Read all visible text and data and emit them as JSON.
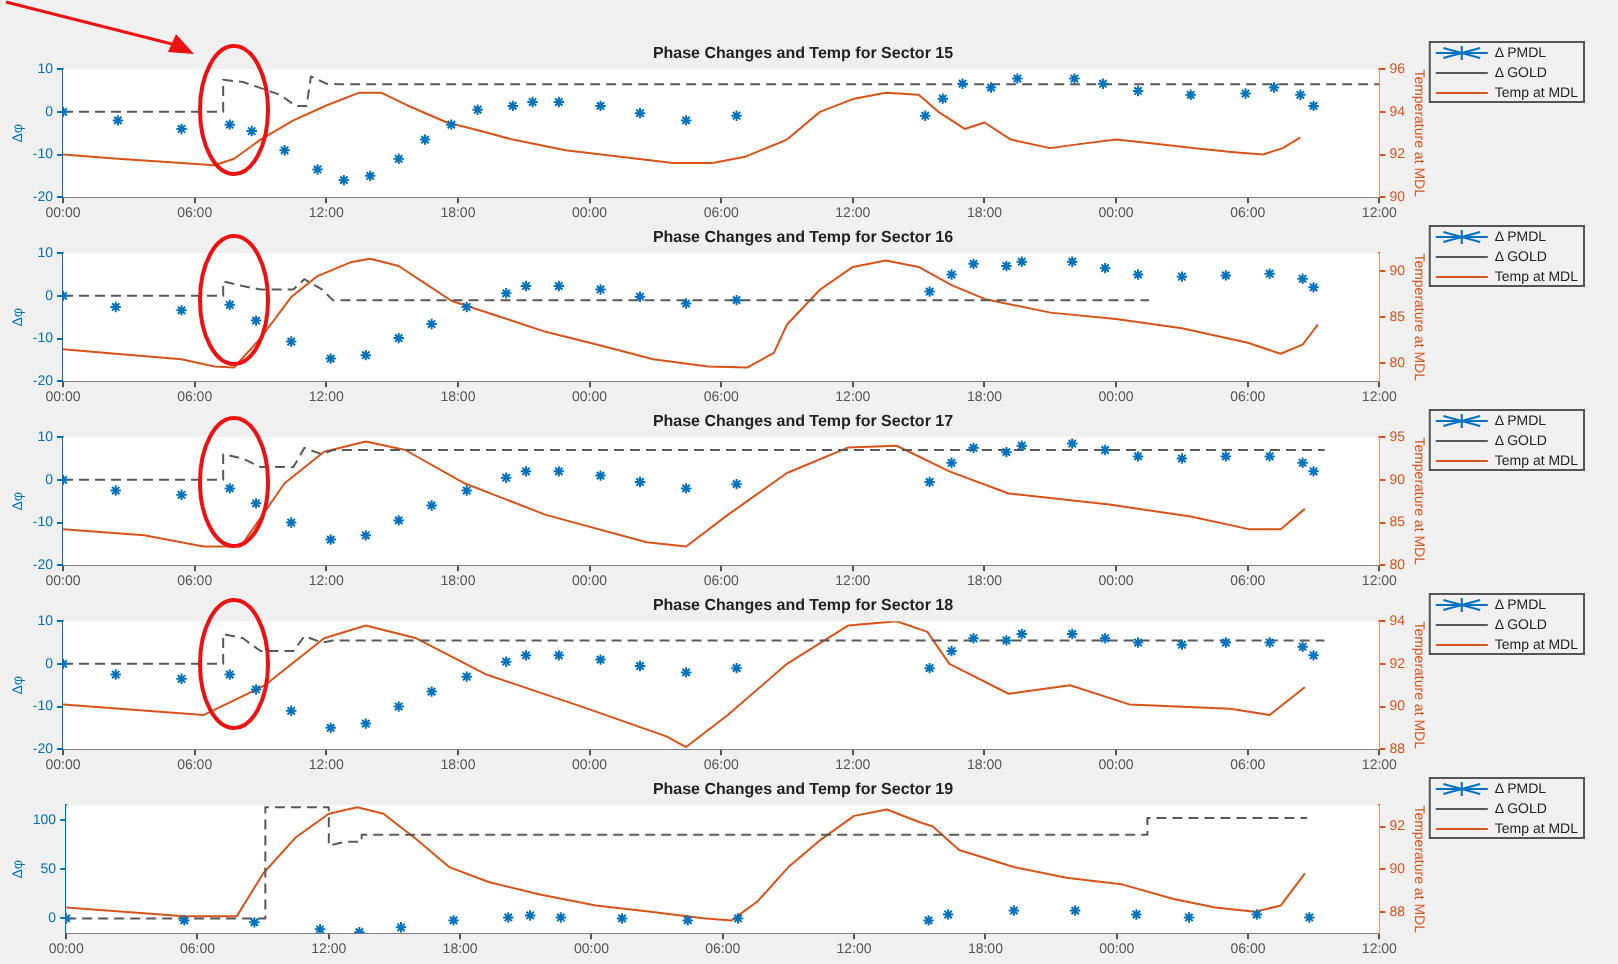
{
  "chart_data": [
    {
      "type": "line",
      "title": "Phase Changes and Temp for Sector 15",
      "ylabel": "Δφ",
      "y2label": "Temperature at MDL",
      "xlim": [
        "--01-01T00:00",
        "--01-03T12:00"
      ],
      "xticks": [
        {
          "value": "--01-01T00:00",
          "label": "00:00"
        },
        {
          "value": "--01-01T06:00",
          "label": "06:00"
        },
        {
          "value": "--01-01T12:00",
          "label": "12:00"
        },
        {
          "value": "--01-01T18:00",
          "label": "18:00"
        },
        {
          "value": "--01-02T00:00",
          "label": "00:00"
        },
        {
          "value": "--01-02T06:00",
          "label": "06:00"
        },
        {
          "value": "--01-02T12:00",
          "label": "12:00"
        },
        {
          "value": "--01-02T18:00",
          "label": "18:00"
        },
        {
          "value": "--01-03T00:00",
          "label": "00:00"
        },
        {
          "value": "--01-03T06:00",
          "label": "06:00"
        },
        {
          "value": "--01-03T12:00",
          "label": "12:00"
        }
      ],
      "ylim": [
        -20,
        10
      ],
      "yticks": [
        -20,
        -10,
        0,
        10
      ],
      "y2lim": [
        90,
        96
      ],
      "y2ticks": [
        90,
        92,
        94,
        96
      ],
      "grid": false,
      "legend": "right",
      "series": [
        {
          "name": "Δ PMDL",
          "type": "scatter",
          "marker": "cross",
          "color": "#0072bd",
          "x": [
            "--01-01T00:00",
            "--01-01T02:30",
            "--01-01T05:24",
            "--01-01T07:36",
            "--01-01T08:36",
            "--01-01T10:06",
            "--01-01T11:36",
            "--01-01T12:48",
            "--01-01T14:00",
            "--01-01T15:18",
            "--01-01T16:30",
            "--01-01T17:42",
            "--01-01T18:54",
            "--01-01T20:30",
            "--01-01T21:24",
            "--01-01T22:36",
            "--01-02T00:30",
            "--01-02T02:18",
            "--01-02T04:24",
            "--01-02T06:42",
            "--01-02T15:18",
            "--01-02T16:06",
            "--01-02T17:00",
            "--01-02T18:18",
            "--01-02T19:30",
            "--01-02T22:06",
            "--01-02T23:24",
            "--01-03T01:00",
            "--01-03T03:24",
            "--01-03T05:54",
            "--01-03T07:12",
            "--01-03T08:24",
            "--01-03T09:00"
          ],
          "values": [
            0,
            -2,
            -4,
            -3,
            -4.5,
            -9,
            -13.5,
            -16,
            -15,
            -11,
            -6.5,
            -3,
            0.5,
            1.4,
            2.3,
            2.3,
            1.4,
            -0.3,
            -2,
            -0.9,
            -0.9,
            3.1,
            6.6,
            5.7,
            7.8,
            7.8,
            6.6,
            4.9,
            4,
            4.3,
            5.7,
            4,
            1.4
          ]
        },
        {
          "name": "Δ GOLD",
          "type": "line",
          "line_style": "dashed",
          "color": "#595959",
          "x": [
            "--01-01T00:00",
            "--01-01T07:18",
            "--01-01T07:18",
            "--01-01T08:12",
            "--01-01T09:54",
            "--01-01T10:36",
            "--01-01T11:06",
            "--01-01T11:18",
            "--01-01T12:00",
            "--01-01T12:36",
            "--01-03T12:00"
          ],
          "values": [
            0,
            0,
            7.5,
            7,
            4,
            1.4,
            1.4,
            8.3,
            6.6,
            6.5,
            6.5
          ]
        },
        {
          "name": "Temp at MDL",
          "type": "line",
          "line_style": "solid",
          "axis": "y2",
          "color": "#d95319",
          "x": [
            "--01-01T00:00",
            "--01-01T02:30",
            "--01-01T05:24",
            "--01-01T06:54",
            "--01-01T07:48",
            "--01-01T09:00",
            "--01-01T10:30",
            "--01-01T12:00",
            "--01-01T13:30",
            "--01-01T14:30",
            "--01-01T15:42",
            "--01-01T17:30",
            "--01-01T18:42",
            "--01-01T20:30",
            "--01-01T22:54",
            "--01-02T01:24",
            "--01-02T03:48",
            "--01-02T05:36",
            "--01-02T07:06",
            "--01-02T09:00",
            "--01-02T10:30",
            "--01-02T12:00",
            "--01-02T13:30",
            "--01-02T15:00",
            "--01-02T15:54",
            "--01-02T17:06",
            "--01-02T18:00",
            "--01-02T19:12",
            "--01-02T21:00",
            "--01-02T22:24",
            "--01-03T00:00",
            "--01-03T01:48",
            "--01-03T03:36",
            "--01-03T05:30",
            "--01-03T06:42",
            "--01-03T07:36",
            "--01-03T08:24"
          ],
          "values": [
            92,
            91.8,
            91.6,
            91.5,
            91.8,
            92.7,
            93.6,
            94.3,
            94.9,
            94.9,
            94.3,
            93.5,
            93.2,
            92.7,
            92.2,
            91.9,
            91.6,
            91.6,
            91.9,
            92.7,
            94,
            94.6,
            94.9,
            94.8,
            94,
            93.2,
            93.5,
            92.7,
            92.3,
            92.5,
            92.7,
            92.5,
            92.3,
            92.1,
            92,
            92.3,
            92.8
          ]
        }
      ]
    },
    {
      "type": "line",
      "title": "Phase Changes and Temp for Sector 16",
      "ylabel": "Δφ",
      "y2label": "Temperature at MDL",
      "xlim": [
        "--01-01T00:00",
        "--01-03T12:00"
      ],
      "xticks": [
        {
          "value": "--01-01T00:00",
          "label": "00:00"
        },
        {
          "value": "--01-01T06:00",
          "label": "06:00"
        },
        {
          "value": "--01-01T12:00",
          "label": "12:00"
        },
        {
          "value": "--01-01T18:00",
          "label": "18:00"
        },
        {
          "value": "--01-02T00:00",
          "label": "00:00"
        },
        {
          "value": "--01-02T06:00",
          "label": "06:00"
        },
        {
          "value": "--01-02T12:00",
          "label": "12:00"
        },
        {
          "value": "--01-02T18:00",
          "label": "18:00"
        },
        {
          "value": "--01-03T00:00",
          "label": "00:00"
        },
        {
          "value": "--01-03T06:00",
          "label": "06:00"
        },
        {
          "value": "--01-03T12:00",
          "label": "12:00"
        }
      ],
      "ylim": [
        -20,
        10
      ],
      "yticks": [
        -20,
        -10,
        0,
        10
      ],
      "y2lim": [
        78,
        92
      ],
      "y2ticks": [
        80,
        85,
        90
      ],
      "grid": false,
      "legend": "right",
      "series": [
        {
          "name": "Δ PMDL",
          "type": "scatter",
          "marker": "cross",
          "color": "#0072bd",
          "x": [
            "--01-01T00:00",
            "--01-01T02:24",
            "--01-01T05:24",
            "--01-01T07:36",
            "--01-01T08:48",
            "--01-01T10:24",
            "--01-01T12:12",
            "--01-01T13:48",
            "--01-01T15:18",
            "--01-01T16:48",
            "--01-01T18:24",
            "--01-01T20:12",
            "--01-01T21:06",
            "--01-01T22:36",
            "--01-02T00:30",
            "--01-02T02:18",
            "--01-02T04:24",
            "--01-02T06:42",
            "--01-02T15:30",
            "--01-02T16:30",
            "--01-02T17:30",
            "--01-02T19:00",
            "--01-02T19:42",
            "--01-02T22:00",
            "--01-02T23:30",
            "--01-03T01:00",
            "--01-03T03:00",
            "--01-03T05:00",
            "--01-03T07:00",
            "--01-03T08:30",
            "--01-03T09:00"
          ],
          "values": [
            0,
            -2.6,
            -3.4,
            -2.1,
            -5.8,
            -10.7,
            -14.7,
            -13.9,
            -9.9,
            -6.6,
            -2.6,
            0.6,
            2.3,
            2.3,
            1.5,
            -0.2,
            -1.8,
            -1,
            1,
            5,
            7.5,
            7,
            8,
            8,
            6.5,
            5,
            4.5,
            4.8,
            5.2,
            4,
            2
          ]
        },
        {
          "name": "Δ GOLD",
          "type": "line",
          "line_style": "dashed",
          "color": "#595959",
          "x": [
            "--01-01T00:00",
            "--01-01T07:18",
            "--01-01T07:18",
            "--01-01T08:12",
            "--01-01T09:00",
            "--01-01T10:30",
            "--01-01T11:00",
            "--01-01T11:48",
            "--01-01T12:18",
            "--01-03T01:30"
          ],
          "values": [
            0,
            0,
            3.4,
            2.3,
            1.5,
            1.5,
            3.9,
            1.5,
            -1,
            -1
          ]
        },
        {
          "name": "Temp at MDL",
          "type": "line",
          "line_style": "solid",
          "axis": "y2",
          "color": "#d95319",
          "x": [
            "--01-01T00:00",
            "--01-01T02:24",
            "--01-01T05:24",
            "--01-01T06:54",
            "--01-01T07:48",
            "--01-01T09:00",
            "--01-01T10:24",
            "--01-01T11:36",
            "--01-01T13:06",
            "--01-01T14:00",
            "--01-01T15:18",
            "--01-01T16:30",
            "--01-01T17:42",
            "--01-01T19:36",
            "--01-01T22:00",
            "--01-02T00:30",
            "--01-02T02:54",
            "--01-02T05:24",
            "--01-02T07:12",
            "--01-02T08:24",
            "--01-02T09:00",
            "--01-02T10:30",
            "--01-02T12:00",
            "--01-02T13:30",
            "--01-02T15:00",
            "--01-02T16:30",
            "--01-02T18:00",
            "--01-02T21:00",
            "--01-03T00:00",
            "--01-03T03:00",
            "--01-03T06:00",
            "--01-03T07:30",
            "--01-03T08:30",
            "--01-03T09:12"
          ],
          "values": [
            81.5,
            81,
            80.4,
            79.6,
            79.5,
            82.7,
            87.2,
            89.5,
            91,
            91.4,
            90.6,
            88.7,
            86.8,
            85.3,
            83.4,
            81.9,
            80.4,
            79.6,
            79.5,
            81.1,
            84.2,
            88,
            90.5,
            91.2,
            90.5,
            88.5,
            87,
            85.5,
            84.8,
            83.8,
            82.2,
            81,
            82,
            84.2
          ]
        }
      ]
    },
    {
      "type": "line",
      "title": "Phase Changes and Temp for Sector 17",
      "ylabel": "Δφ",
      "y2label": "Temperature at MDL",
      "xlim": [
        "--01-01T00:00",
        "--01-03T12:00"
      ],
      "xticks": [
        {
          "value": "--01-01T00:00",
          "label": "00:00"
        },
        {
          "value": "--01-01T06:00",
          "label": "06:00"
        },
        {
          "value": "--01-01T12:00",
          "label": "12:00"
        },
        {
          "value": "--01-01T18:00",
          "label": "18:00"
        },
        {
          "value": "--01-02T00:00",
          "label": "00:00"
        },
        {
          "value": "--01-02T06:00",
          "label": "06:00"
        },
        {
          "value": "--01-02T12:00",
          "label": "12:00"
        },
        {
          "value": "--01-02T18:00",
          "label": "18:00"
        },
        {
          "value": "--01-03T00:00",
          "label": "00:00"
        },
        {
          "value": "--01-03T06:00",
          "label": "06:00"
        },
        {
          "value": "--01-03T12:00",
          "label": "12:00"
        }
      ],
      "ylim": [
        -20,
        10
      ],
      "yticks": [
        -20,
        -10,
        0,
        10
      ],
      "y2lim": [
        80,
        95
      ],
      "y2ticks": [
        80,
        85,
        90,
        95
      ],
      "grid": false,
      "legend": "right",
      "series": [
        {
          "name": "Δ PMDL",
          "type": "scatter",
          "marker": "cross",
          "color": "#0072bd",
          "x": [
            "--01-01T00:00",
            "--01-01T02:24",
            "--01-01T05:24",
            "--01-01T07:36",
            "--01-01T08:48",
            "--01-01T10:24",
            "--01-01T12:12",
            "--01-01T13:48",
            "--01-01T15:18",
            "--01-01T16:48",
            "--01-01T18:24",
            "--01-01T20:12",
            "--01-01T21:06",
            "--01-01T22:36",
            "--01-02T00:30",
            "--01-02T02:18",
            "--01-02T04:24",
            "--01-02T06:42",
            "--01-02T15:30",
            "--01-02T16:30",
            "--01-02T17:30",
            "--01-02T19:00",
            "--01-02T19:42",
            "--01-02T22:00",
            "--01-02T23:30",
            "--01-03T01:00",
            "--01-03T03:00",
            "--01-03T05:00",
            "--01-03T07:00",
            "--01-03T08:30",
            "--01-03T09:00"
          ],
          "values": [
            0,
            -2.5,
            -3.5,
            -2,
            -5.5,
            -10,
            -14,
            -13,
            -9.5,
            -6,
            -2.5,
            0.5,
            2,
            2,
            1,
            -0.5,
            -2,
            -1,
            -0.5,
            4,
            7.5,
            6.5,
            8,
            8.5,
            7,
            5.5,
            5,
            5.5,
            5.5,
            4,
            2
          ]
        },
        {
          "name": "Δ GOLD",
          "type": "line",
          "line_style": "dashed",
          "color": "#595959",
          "x": [
            "--01-01T00:00",
            "--01-01T07:18",
            "--01-01T07:18",
            "--01-01T08:12",
            "--01-01T09:00",
            "--01-01T10:30",
            "--01-01T11:00",
            "--01-01T11:48",
            "--01-01T12:18",
            "--01-03T09:30"
          ],
          "values": [
            0,
            0,
            6,
            5,
            3,
            3,
            7.5,
            6,
            7,
            7
          ]
        },
        {
          "name": "Temp at MDL",
          "type": "line",
          "line_style": "solid",
          "axis": "y2",
          "color": "#d95319",
          "x": [
            "--01-01T00:00",
            "--01-01T03:42",
            "--01-01T06:24",
            "--01-01T08:06",
            "--01-01T10:06",
            "--01-01T11:54",
            "--01-01T13:48",
            "--01-01T15:36",
            "--01-01T18:18",
            "--01-01T22:00",
            "--01-02T02:36",
            "--01-02T04:24",
            "--01-02T06:18",
            "--01-02T09:00",
            "--01-02T11:48",
            "--01-02T14:00",
            "--01-02T16:24",
            "--01-02T19:06",
            "--01-02T23:42",
            "--01-03T03:24",
            "--01-03T06:06",
            "--01-03T07:30",
            "--01-03T08:36"
          ],
          "values": [
            84.2,
            83.5,
            82.2,
            82.2,
            89.6,
            93.3,
            94.5,
            93.5,
            89.6,
            85.9,
            82.7,
            82.2,
            85.9,
            90.8,
            93.8,
            94,
            91,
            88.4,
            87.1,
            85.7,
            84.2,
            84.2,
            86.6
          ]
        }
      ]
    },
    {
      "type": "line",
      "title": "Phase Changes and Temp for Sector 18",
      "ylabel": "Δφ",
      "y2label": "Temperature at MDL",
      "xlim": [
        "--01-01T00:00",
        "--01-03T12:00"
      ],
      "xticks": [
        {
          "value": "--01-01T00:00",
          "label": "00:00"
        },
        {
          "value": "--01-01T06:00",
          "label": "06:00"
        },
        {
          "value": "--01-01T12:00",
          "label": "12:00"
        },
        {
          "value": "--01-01T18:00",
          "label": "18:00"
        },
        {
          "value": "--01-02T00:00",
          "label": "00:00"
        },
        {
          "value": "--01-02T06:00",
          "label": "06:00"
        },
        {
          "value": "--01-02T12:00",
          "label": "12:00"
        },
        {
          "value": "--01-02T18:00",
          "label": "18:00"
        },
        {
          "value": "--01-03T00:00",
          "label": "00:00"
        },
        {
          "value": "--01-03T06:00",
          "label": "06:00"
        },
        {
          "value": "--01-03T12:00",
          "label": "12:00"
        }
      ],
      "ylim": [
        -20,
        10
      ],
      "yticks": [
        -20,
        -10,
        0,
        10
      ],
      "y2lim": [
        88,
        94
      ],
      "y2ticks": [
        88,
        90,
        92,
        94
      ],
      "grid": false,
      "legend": "right",
      "series": [
        {
          "name": "Δ PMDL",
          "type": "scatter",
          "marker": "cross",
          "color": "#0072bd",
          "x": [
            "--01-01T00:00",
            "--01-01T02:24",
            "--01-01T05:24",
            "--01-01T07:36",
            "--01-01T08:48",
            "--01-01T10:24",
            "--01-01T12:12",
            "--01-01T13:48",
            "--01-01T15:18",
            "--01-01T16:48",
            "--01-01T18:24",
            "--01-01T20:12",
            "--01-01T21:06",
            "--01-01T22:36",
            "--01-02T00:30",
            "--01-02T02:18",
            "--01-02T04:24",
            "--01-02T06:42",
            "--01-02T15:30",
            "--01-02T16:30",
            "--01-02T17:30",
            "--01-02T19:00",
            "--01-02T19:42",
            "--01-02T22:00",
            "--01-02T23:30",
            "--01-03T01:00",
            "--01-03T03:00",
            "--01-03T05:00",
            "--01-03T07:00",
            "--01-03T08:30",
            "--01-03T09:00"
          ],
          "values": [
            0,
            -2.5,
            -3.5,
            -2.5,
            -6,
            -11,
            -15,
            -14,
            -10,
            -6.5,
            -3,
            0.5,
            2,
            2,
            1,
            -0.5,
            -2,
            -1,
            -1,
            3,
            6,
            5.5,
            7,
            7,
            6,
            5,
            4.5,
            5,
            5,
            4,
            2
          ]
        },
        {
          "name": "Δ GOLD",
          "type": "line",
          "line_style": "dashed",
          "color": "#595959",
          "x": [
            "--01-01T00:00",
            "--01-01T07:18",
            "--01-01T07:18",
            "--01-01T08:12",
            "--01-01T09:00",
            "--01-01T10:30",
            "--01-01T11:00",
            "--01-01T11:48",
            "--01-01T12:18",
            "--01-03T09:30"
          ],
          "values": [
            0,
            0,
            7,
            6,
            3,
            3,
            6.5,
            5,
            5.5,
            5.5
          ]
        },
        {
          "name": "Temp at MDL",
          "type": "line",
          "line_style": "solid",
          "axis": "y2",
          "color": "#d95319",
          "x": [
            "--01-01T00:00",
            "--01-01T06:24",
            "--01-01T09:12",
            "--01-01T11:54",
            "--01-01T13:48",
            "--01-01T16:06",
            "--01-01T19:18",
            "--01-01T23:54",
            "--01-02T03:30",
            "--01-02T04:24",
            "--01-02T06:18",
            "--01-02T09:00",
            "--01-02T11:48",
            "--01-02T14:00",
            "--01-02T15:24",
            "--01-02T16:24",
            "--01-02T19:06",
            "--01-02T21:54",
            "--01-03T00:36",
            "--01-03T05:12",
            "--01-03T07:00",
            "--01-03T08:36"
          ],
          "values": [
            90.1,
            89.6,
            91,
            93.2,
            93.8,
            93.2,
            91.5,
            89.9,
            88.6,
            88.1,
            89.6,
            92,
            93.8,
            94,
            93.5,
            92,
            90.6,
            91,
            90.1,
            89.9,
            89.6,
            90.9
          ]
        }
      ]
    },
    {
      "type": "line",
      "title": "Phase Changes and Temp for Sector 19",
      "ylabel": "Δφ",
      "y2label": "Temperature at MDL",
      "xlim": [
        "--01-01T00:00",
        "--01-03T12:00"
      ],
      "xticks": [
        {
          "value": "--01-01T00:00",
          "label": "00:00"
        },
        {
          "value": "--01-01T06:00",
          "label": "06:00"
        },
        {
          "value": "--01-01T12:00",
          "label": "12:00"
        },
        {
          "value": "--01-01T18:00",
          "label": "18:00"
        },
        {
          "value": "--01-02T00:00",
          "label": "00:00"
        },
        {
          "value": "--01-02T06:00",
          "label": "06:00"
        },
        {
          "value": "--01-02T12:00",
          "label": "12:00"
        },
        {
          "value": "--01-02T18:00",
          "label": "18:00"
        },
        {
          "value": "--01-03T00:00",
          "label": "00:00"
        },
        {
          "value": "--01-03T06:00",
          "label": "06:00"
        },
        {
          "value": "--01-03T12:00",
          "label": "12:00"
        }
      ],
      "ylim": [
        -15,
        115
      ],
      "yticks": [
        0,
        50,
        100
      ],
      "y2lim": [
        87,
        93
      ],
      "y2ticks": [
        88,
        90,
        92
      ],
      "grid": false,
      "legend": "right",
      "series": [
        {
          "name": "Δ PMDL",
          "type": "scatter",
          "marker": "cross",
          "color": "#0072bd",
          "x": [
            "--01-01T00:00",
            "--01-01T05:24",
            "--01-01T08:36",
            "--01-01T11:36",
            "--01-01T13:24",
            "--01-01T15:18",
            "--01-01T17:42",
            "--01-01T20:12",
            "--01-01T21:12",
            "--01-01T22:36",
            "--01-02T01:24",
            "--01-02T04:24",
            "--01-02T06:42",
            "--01-02T15:24",
            "--01-02T16:18",
            "--01-02T19:18",
            "--01-02T22:06",
            "--01-03T00:54",
            "--01-03T03:18",
            "--01-03T06:24",
            "--01-03T08:48"
          ],
          "values": [
            0,
            -2,
            -4,
            -11,
            -14,
            -9,
            -2,
            1,
            3,
            1,
            0,
            -2,
            0,
            -2,
            4,
            8,
            8,
            4,
            1,
            4,
            1
          ]
        },
        {
          "name": "Δ GOLD",
          "type": "line",
          "line_style": "dashed",
          "color": "#595959",
          "x": [
            "--01-01T00:00",
            "--01-01T09:06",
            "--01-01T09:06",
            "--01-01T12:00",
            "--01-01T12:00",
            "--01-01T12:48",
            "--01-01T13:30",
            "--01-01T13:30",
            "--01-03T01:24",
            "--01-03T01:24",
            "--01-03T08:42"
          ],
          "values": [
            0,
            0,
            113,
            113,
            74,
            78,
            78,
            85,
            85,
            102,
            102
          ]
        },
        {
          "name": "Temp at MDL",
          "type": "line",
          "line_style": "solid",
          "axis": "y2",
          "color": "#d95319",
          "x": [
            "--01-01T00:00",
            "--01-01T05:24",
            "--01-01T07:48",
            "--01-01T09:00",
            "--01-01T10:30",
            "--01-01T12:00",
            "--01-01T13:18",
            "--01-01T14:30",
            "--01-01T16:00",
            "--01-01T17:30",
            "--01-01T19:18",
            "--01-01T21:42",
            "--01-02T00:12",
            "--01-02T02:42",
            "--01-02T05:06",
            "--01-02T06:24",
            "--01-02T07:36",
            "--01-02T09:00",
            "--01-02T10:30",
            "--01-02T12:00",
            "--01-02T13:30",
            "--01-02T15:00",
            "--01-02T15:36",
            "--01-02T16:48",
            "--01-02T19:18",
            "--01-02T21:42",
            "--01-03T00:12",
            "--01-03T02:36",
            "--01-03T04:30",
            "--01-03T06:18",
            "--01-03T07:30",
            "--01-03T08:36"
          ],
          "values": [
            88.2,
            87.8,
            87.8,
            89.8,
            91.5,
            92.6,
            92.9,
            92.6,
            91.4,
            90.1,
            89.4,
            88.8,
            88.3,
            88,
            87.7,
            87.6,
            88.5,
            90.1,
            91.4,
            92.5,
            92.8,
            92.2,
            92,
            90.9,
            90.1,
            89.6,
            89.3,
            88.6,
            88.2,
            88,
            88.3,
            89.8
          ]
        }
      ]
    }
  ]
}
